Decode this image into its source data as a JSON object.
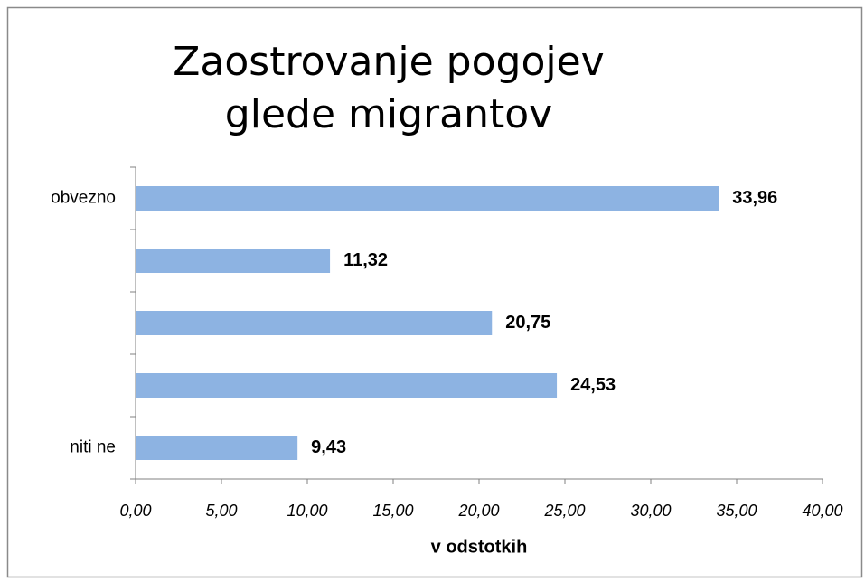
{
  "chart_data": {
    "type": "bar",
    "orientation": "horizontal",
    "title": "Zaostrovanje pogojev glede migrantov",
    "categories": [
      "obvezno",
      null,
      null,
      null,
      "niti ne"
    ],
    "values": [
      33.96,
      11.32,
      20.75,
      24.53,
      9.43
    ],
    "value_labels": [
      "33,96",
      "11,32",
      "20,75",
      "24,53",
      "9,43"
    ],
    "color": "#8db3e2",
    "xlabel": "v odstotkih",
    "xlim": [
      0,
      40
    ],
    "xticks": [
      {
        "value": 0,
        "label": "0,00"
      },
      {
        "value": 5,
        "label": "5,00"
      },
      {
        "value": 10,
        "label": "10,00"
      },
      {
        "value": 15,
        "label": "15,00"
      },
      {
        "value": 20,
        "label": "20,00"
      },
      {
        "value": 25,
        "label": "25,00"
      },
      {
        "value": 30,
        "label": "30,00"
      },
      {
        "value": 35,
        "label": "35,00"
      },
      {
        "value": 40,
        "label": "40,00"
      }
    ],
    "grid": false
  }
}
